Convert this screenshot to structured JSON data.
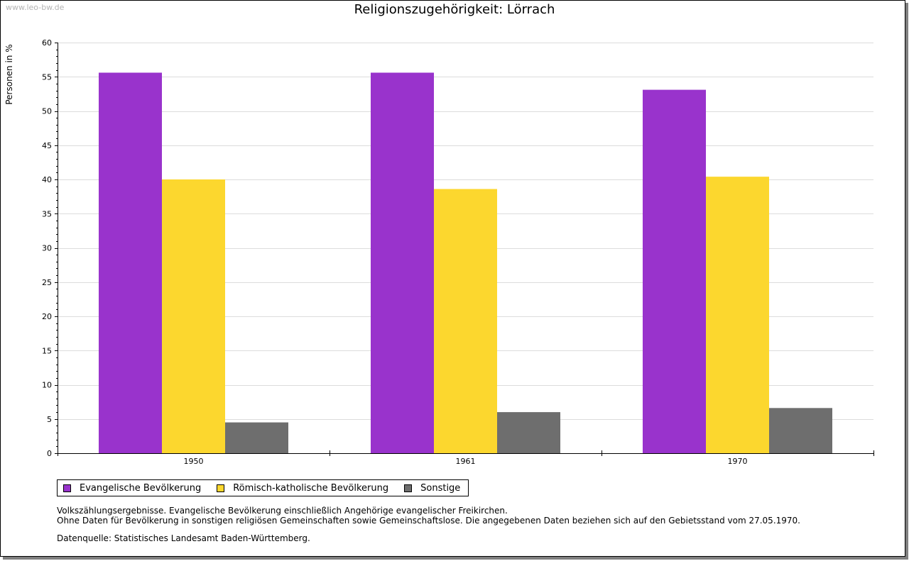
{
  "watermark": "www.leo-bw.de",
  "chart_data": {
    "type": "bar",
    "title": "Religionszugehörigkeit: Lörrach",
    "xlabel": "",
    "ylabel": "Personen in %",
    "ylim": [
      0,
      60
    ],
    "yticks": [
      0,
      5,
      10,
      15,
      20,
      25,
      30,
      35,
      40,
      45,
      50,
      55,
      60
    ],
    "grid": true,
    "legend_position": "bottom-left",
    "categories": [
      "1950",
      "1961",
      "1970"
    ],
    "series": [
      {
        "name": "Evangelische Bevölkerung",
        "color": "#9933cc",
        "values": [
          55.6,
          55.6,
          53.1
        ]
      },
      {
        "name": "Römisch-katholische Bevölkerung",
        "color": "#fcd72e",
        "values": [
          40.0,
          38.6,
          40.4
        ]
      },
      {
        "name": "Sonstige",
        "color": "#6e6e6e",
        "values": [
          4.5,
          6.0,
          6.6
        ]
      }
    ]
  },
  "notes": {
    "line1": "Volkszählungsergebnisse. Evangelische Bevölkerung einschließlich Angehörige evangelischer Freikirchen.",
    "line2": "Ohne Daten für Bevölkerung in sonstigen religiösen Gemeinschaften sowie Gemeinschaftslose. Die angegebenen Daten beziehen sich auf den Gebietsstand vom 27.05.1970."
  },
  "source": "Datenquelle: Statistisches Landesamt Baden-Württemberg."
}
